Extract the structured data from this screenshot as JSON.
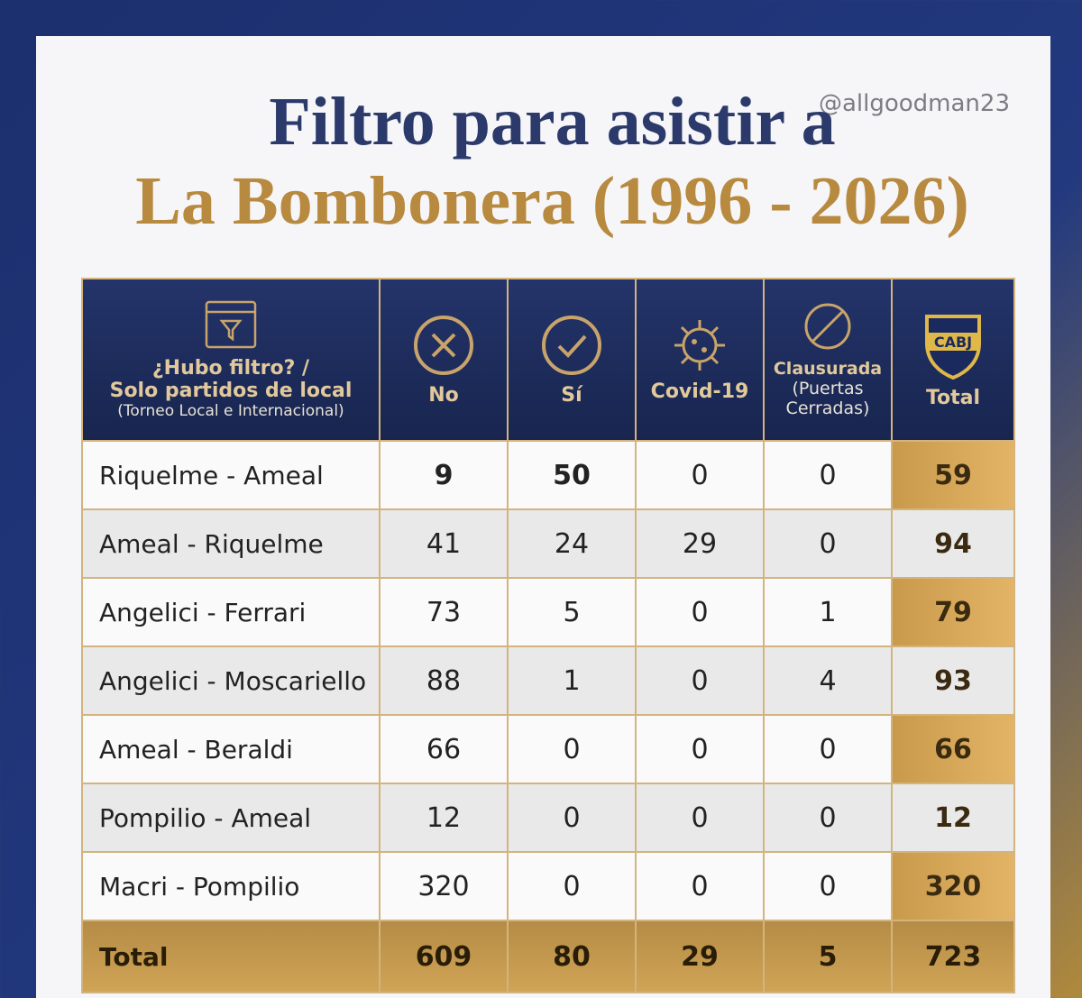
{
  "handle": "@allgoodman23",
  "title": {
    "line1": "Filtro para asistir a",
    "line2": "La Bombonera (1996 - 2026)"
  },
  "table": {
    "header": {
      "label": {
        "line1": "¿Hubo filtro? /",
        "line2": "Solo partidos de local",
        "line3": "(Torneo Local e Internacional)"
      },
      "columns": [
        {
          "name": "No"
        },
        {
          "name": "Sí"
        },
        {
          "name": "Covid-19"
        },
        {
          "name": "Clausurada",
          "note": "(Puertas Cerradas)"
        },
        {
          "name": "Total",
          "badge": "CABJ"
        }
      ]
    },
    "rows": [
      {
        "label": "Riquelme - Ameal",
        "values": [
          9,
          50,
          0,
          0,
          59
        ]
      },
      {
        "label": "Ameal - Riquelme",
        "values": [
          41,
          24,
          29,
          0,
          94
        ]
      },
      {
        "label": "Angelici - Ferrari",
        "values": [
          73,
          5,
          0,
          1,
          79
        ]
      },
      {
        "label": "Angelici - Moscariello",
        "values": [
          88,
          1,
          0,
          4,
          93
        ]
      },
      {
        "label": "Ameal - Beraldi",
        "values": [
          66,
          0,
          0,
          0,
          66
        ]
      },
      {
        "label": "Pompilio - Ameal",
        "values": [
          12,
          0,
          0,
          0,
          12
        ]
      },
      {
        "label": "Macri - Pompilio",
        "values": [
          320,
          0,
          0,
          0,
          320
        ]
      }
    ],
    "total": {
      "label": "Total",
      "values": [
        609,
        80,
        29,
        5,
        723
      ]
    }
  }
}
